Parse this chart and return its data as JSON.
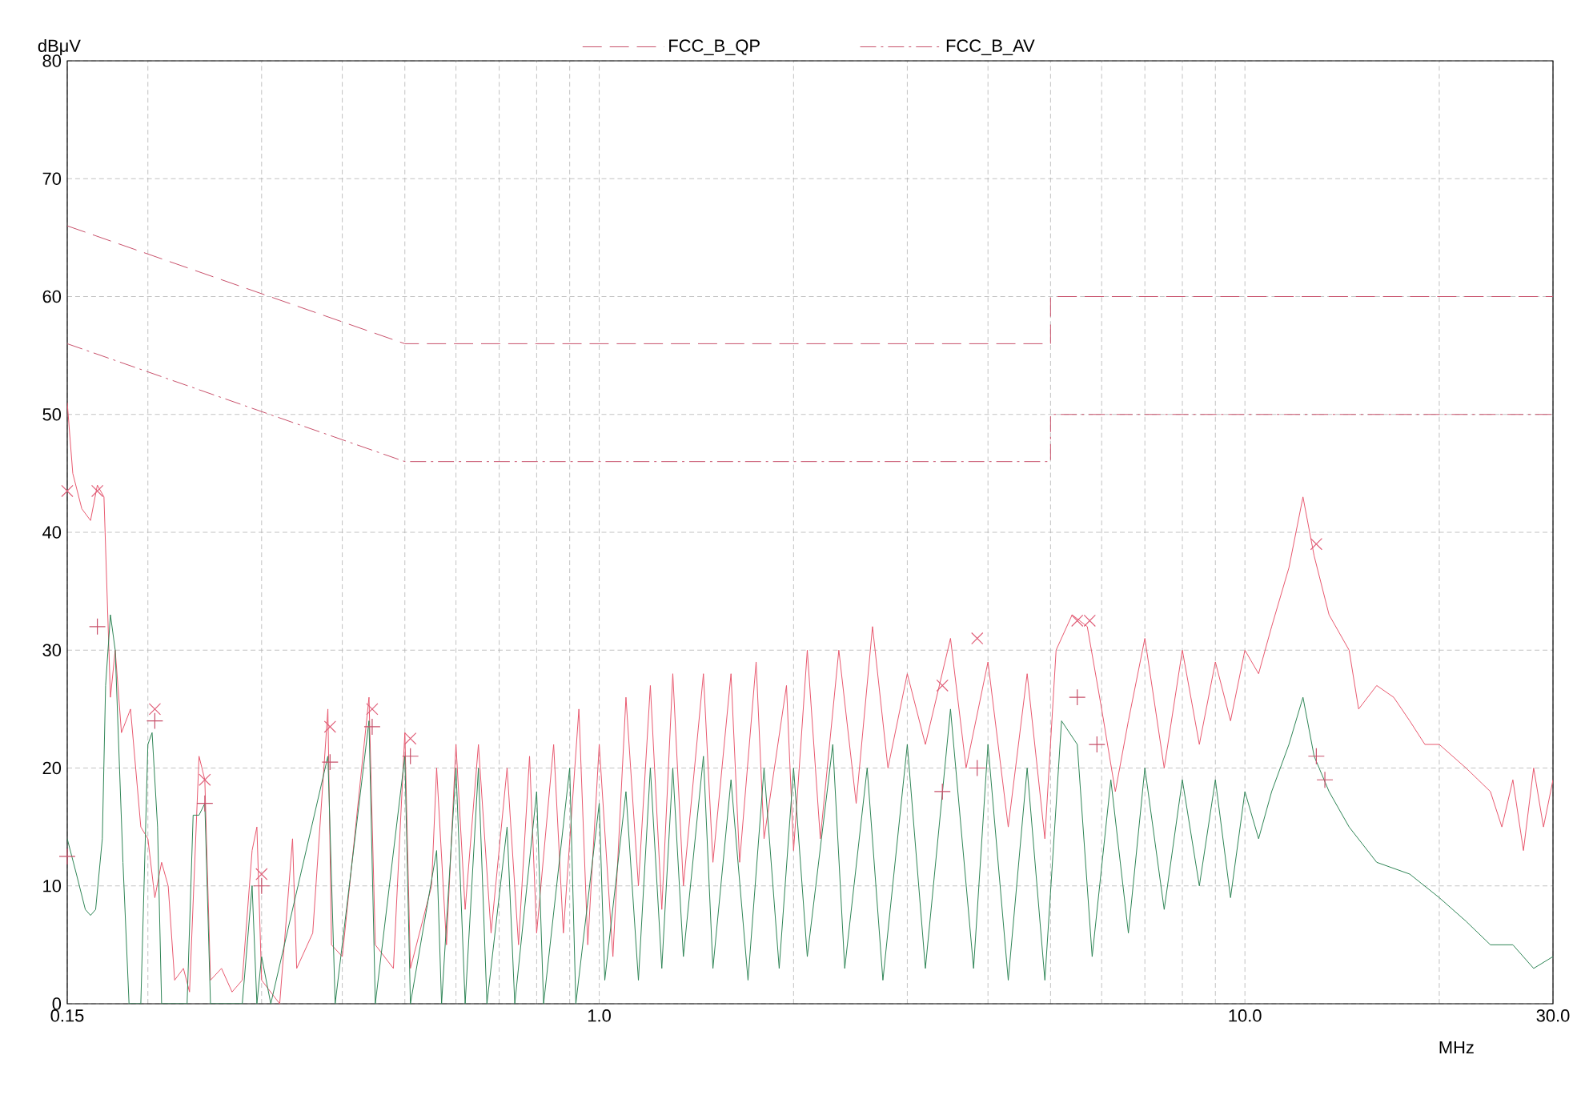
{
  "chart_data": {
    "type": "line",
    "xlabel": "MHz",
    "ylabel": "dBμV",
    "log": "x",
    "grid": true,
    "legend": "top",
    "xlim": [
      0.15,
      30
    ],
    "ylim": [
      0,
      80
    ],
    "xticks": [
      0.15,
      {
        "value": 0.2,
        "label": null
      },
      {
        "value": 0.3,
        "label": null
      },
      {
        "value": 0.4,
        "label": null
      },
      {
        "value": 0.5,
        "label": null
      },
      {
        "value": 0.6,
        "label": null
      },
      {
        "value": 0.7,
        "label": null
      },
      {
        "value": 0.8,
        "label": null
      },
      {
        "value": 0.9,
        "label": null
      },
      {
        "value": 1,
        "label": "1.0"
      },
      {
        "value": 2,
        "label": null
      },
      {
        "value": 3,
        "label": null
      },
      {
        "value": 4,
        "label": null
      },
      {
        "value": 5,
        "label": null
      },
      {
        "value": 6,
        "label": null
      },
      {
        "value": 7,
        "label": null
      },
      {
        "value": 8,
        "label": null
      },
      {
        "value": 9,
        "label": null
      },
      {
        "value": 10,
        "label": "10.0"
      },
      {
        "value": 20,
        "label": null
      },
      {
        "value": 30,
        "label": "30.0"
      }
    ],
    "yticks": [
      0,
      10,
      20,
      30,
      40,
      50,
      60,
      70,
      80
    ],
    "series": [
      {
        "name": "FCC_B_QP",
        "line_style": "dashed",
        "color": "#c8506a",
        "x": [
          0.15,
          0.5,
          5,
          5,
          30
        ],
        "values": [
          66,
          56,
          56,
          60,
          60
        ]
      },
      {
        "name": "FCC_B_AV",
        "line_style": "dashdot",
        "color": "#c8506a",
        "x": [
          0.15,
          0.5,
          5,
          5,
          30
        ],
        "values": [
          56,
          46,
          46,
          50,
          50
        ]
      },
      {
        "line_style": "solid",
        "color": "#e8586e",
        "x": [
          0.15,
          0.153,
          0.158,
          0.163,
          0.167,
          0.171,
          0.175,
          0.178,
          0.182,
          0.188,
          0.195,
          0.2,
          0.205,
          0.21,
          0.215,
          0.22,
          0.227,
          0.232,
          0.24,
          0.245,
          0.25,
          0.26,
          0.27,
          0.28,
          0.29,
          0.295,
          0.3,
          0.32,
          0.335,
          0.34,
          0.36,
          0.38,
          0.385,
          0.4,
          0.44,
          0.45,
          0.48,
          0.5,
          0.51,
          0.55,
          0.56,
          0.58,
          0.6,
          0.62,
          0.65,
          0.68,
          0.72,
          0.75,
          0.78,
          0.8,
          0.85,
          0.88,
          0.93,
          0.96,
          1.0,
          1.05,
          1.1,
          1.15,
          1.2,
          1.25,
          1.3,
          1.35,
          1.45,
          1.5,
          1.6,
          1.65,
          1.75,
          1.8,
          1.95,
          2.0,
          2.1,
          2.2,
          2.35,
          2.5,
          2.65,
          2.8,
          3.0,
          3.2,
          3.5,
          3.7,
          4.0,
          4.3,
          4.6,
          4.9,
          5.1,
          5.4,
          5.7,
          6.0,
          6.3,
          6.6,
          7.0,
          7.5,
          8.0,
          8.5,
          9.0,
          9.5,
          10.0,
          10.5,
          11.0,
          11.7,
          12.3,
          12.8,
          13.5,
          14.5,
          15,
          16,
          17,
          18,
          19,
          20,
          22,
          24,
          25,
          26,
          27,
          28,
          29,
          30
        ],
        "values": [
          51,
          45,
          42,
          41,
          44,
          43,
          26,
          30,
          23,
          25,
          15,
          14,
          9,
          12,
          10,
          2,
          3,
          1,
          21,
          19,
          2,
          3,
          1,
          2,
          13,
          15,
          2,
          0,
          14,
          3,
          6,
          25,
          5,
          4,
          26,
          5,
          3,
          23,
          3,
          10,
          20,
          5,
          22,
          8,
          22,
          6,
          20,
          5,
          21,
          6,
          22,
          6,
          25,
          5,
          22,
          4,
          26,
          10,
          27,
          8,
          28,
          10,
          28,
          12,
          28,
          12,
          29,
          14,
          27,
          13,
          30,
          14,
          30,
          17,
          32,
          20,
          28,
          22,
          31,
          20,
          29,
          15,
          28,
          14,
          30,
          33,
          32,
          25,
          18,
          24,
          31,
          20,
          30,
          22,
          29,
          24,
          30,
          28,
          32,
          37,
          43,
          38,
          33,
          30,
          25,
          27,
          26,
          24,
          22,
          22,
          20,
          18,
          15,
          19,
          13,
          20,
          15,
          19
        ]
      },
      {
        "line_style": "solid",
        "color": "#2e8555",
        "x": [
          0.15,
          0.155,
          0.16,
          0.163,
          0.166,
          0.17,
          0.172,
          0.175,
          0.178,
          0.183,
          0.187,
          0.19,
          0.195,
          0.2,
          0.203,
          0.207,
          0.21,
          0.23,
          0.235,
          0.24,
          0.245,
          0.25,
          0.28,
          0.29,
          0.295,
          0.3,
          0.31,
          0.38,
          0.39,
          0.44,
          0.45,
          0.5,
          0.51,
          0.56,
          0.57,
          0.6,
          0.62,
          0.65,
          0.67,
          0.72,
          0.74,
          0.8,
          0.82,
          0.9,
          0.92,
          1.0,
          1.02,
          1.1,
          1.15,
          1.2,
          1.25,
          1.3,
          1.35,
          1.45,
          1.5,
          1.6,
          1.7,
          1.8,
          1.9,
          2.0,
          2.1,
          2.3,
          2.4,
          2.6,
          2.75,
          3.0,
          3.2,
          3.5,
          3.8,
          4.0,
          4.3,
          4.6,
          4.9,
          5.2,
          5.5,
          5.8,
          6.2,
          6.6,
          7.0,
          7.5,
          8.0,
          8.5,
          9.0,
          9.5,
          10,
          10.5,
          11,
          11.7,
          12.3,
          12.8,
          13.5,
          14.5,
          16,
          18,
          20,
          22,
          24,
          26,
          28,
          30
        ],
        "values": [
          14,
          11,
          8,
          7.5,
          8,
          14,
          27,
          33,
          30,
          12,
          0,
          0,
          0,
          22,
          23,
          15,
          0,
          0,
          16,
          16,
          17,
          0,
          0,
          10,
          0,
          4,
          0,
          21,
          0,
          24,
          0,
          21,
          0,
          13,
          0,
          20,
          0,
          20,
          0,
          15,
          0,
          18,
          0,
          20,
          0,
          17,
          2,
          18,
          2,
          20,
          3,
          20,
          4,
          21,
          3,
          19,
          2,
          20,
          3,
          20,
          4,
          22,
          3,
          20,
          2,
          22,
          3,
          25,
          3,
          22,
          2,
          20,
          2,
          24,
          22,
          4,
          19,
          6,
          20,
          8,
          19,
          10,
          19,
          9,
          18,
          14,
          18,
          22,
          26,
          21,
          18,
          15,
          12,
          11,
          9,
          7,
          5,
          5,
          3,
          4
        ]
      },
      {
        "type": "scatter",
        "marker": "cross",
        "color": "#e0607a",
        "x": [
          0.15,
          0.167,
          0.205,
          0.245,
          0.3,
          0.383,
          0.445,
          0.51,
          3.4,
          3.85,
          5.5,
          5.75,
          12.9
        ],
        "values": [
          43.5,
          43.5,
          25,
          19,
          11,
          23.5,
          25,
          22.5,
          27,
          31,
          32.5,
          32.5,
          39
        ]
      },
      {
        "type": "scatter",
        "marker": "plus",
        "color": "#c8506a",
        "x": [
          0.15,
          0.167,
          0.205,
          0.245,
          0.3,
          0.383,
          0.445,
          0.51,
          3.4,
          3.85,
          5.5,
          5.9,
          12.9,
          13.3
        ],
        "values": [
          12.5,
          32,
          24,
          17,
          10,
          20.5,
          23.5,
          21,
          18,
          20,
          26,
          22,
          21,
          19
        ]
      }
    ]
  }
}
